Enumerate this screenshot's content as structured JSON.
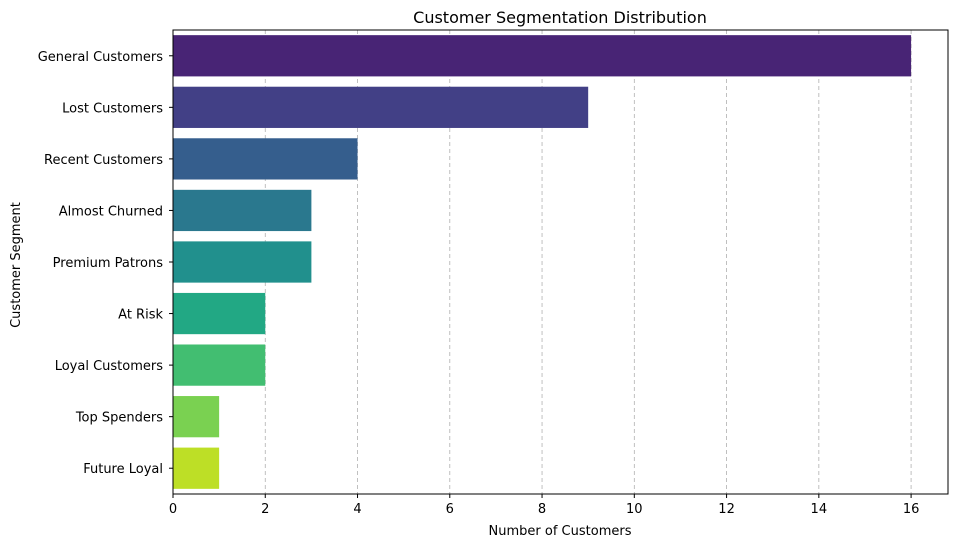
{
  "chart_data": {
    "type": "bar",
    "orientation": "horizontal",
    "title": "Customer Segmentation Distribution",
    "xlabel": "Number of Customers",
    "ylabel": "Customer Segment",
    "categories": [
      "General Customers",
      "Lost Customers",
      "Recent Customers",
      "Almost Churned",
      "Premium Patrons",
      "At Risk",
      "Loyal Customers",
      "Top Spenders",
      "Future Loyal"
    ],
    "values": [
      16,
      9,
      4,
      3,
      3,
      2,
      2,
      1,
      1
    ],
    "colors": [
      "#482475",
      "#424086",
      "#355e8d",
      "#2a788e",
      "#21908d",
      "#22a884",
      "#42be71",
      "#7ad151",
      "#bddf26"
    ],
    "xlim": [
      0,
      16.8
    ],
    "xticks": [
      0,
      2,
      4,
      6,
      8,
      10,
      12,
      14,
      16
    ],
    "grid": "x, dashed",
    "legend": "none"
  }
}
